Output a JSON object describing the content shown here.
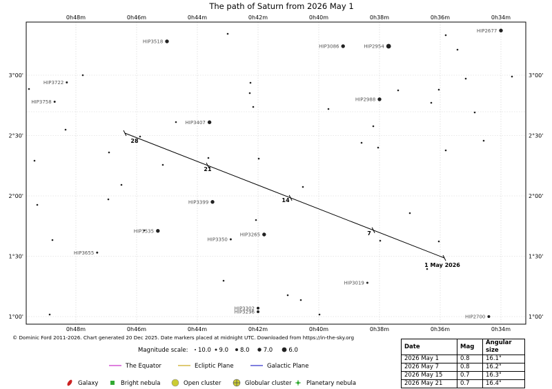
{
  "chart_data": {
    "type": "scatter",
    "title": "The path of Saturn from 2026 May 1",
    "x_axis_labels": [
      "0h48m",
      "0h46m",
      "0h44m",
      "0h42m",
      "0h40m",
      "0h38m",
      "0h36m",
      "0h34m"
    ],
    "y_axis_labels": [
      "1°00'",
      "1°30'",
      "2°00'",
      "2°30'",
      "3°00'"
    ],
    "grid": true,
    "stars": [
      {
        "name": "HIP2677",
        "ra_m": 34.0,
        "dec": 3.37,
        "mag": 7.0
      },
      {
        "name": "HIP3518",
        "ra_m": 45.0,
        "dec": 3.28,
        "mag": 7.0
      },
      {
        "name": "HIP3086",
        "ra_m": 39.2,
        "dec": 3.24,
        "mag": 7.0
      },
      {
        "name": "HIP2954",
        "ra_m": 37.7,
        "dec": 3.24,
        "mag": 6.0
      },
      {
        "name": "HIP3722",
        "ra_m": 48.3,
        "dec": 2.94,
        "mag": 9.0
      },
      {
        "name": "HIP3758",
        "ra_m": 48.7,
        "dec": 2.78,
        "mag": 9.0
      },
      {
        "name": "HIP2988",
        "ra_m": 38.0,
        "dec": 2.8,
        "mag": 7.0
      },
      {
        "name": "HIP3407",
        "ra_m": 43.6,
        "dec": 2.61,
        "mag": 7.0
      },
      {
        "name": "HIP3399",
        "ra_m": 43.5,
        "dec": 1.95,
        "mag": 7.0
      },
      {
        "name": "HIP3535",
        "ra_m": 45.3,
        "dec": 1.71,
        "mag": 7.0
      },
      {
        "name": "HIP3265",
        "ra_m": 41.8,
        "dec": 1.68,
        "mag": 7.0
      },
      {
        "name": "HIP3350",
        "ra_m": 42.9,
        "dec": 1.64,
        "mag": 9.0
      },
      {
        "name": "HIP3655",
        "ra_m": 47.3,
        "dec": 1.53,
        "mag": 9.0
      },
      {
        "name": "HIP3019",
        "ra_m": 38.4,
        "dec": 1.28,
        "mag": 9.0
      },
      {
        "name": "HIP3302",
        "ra_m": 42.0,
        "dec": 1.07,
        "mag": 8.0
      },
      {
        "name": "HIP3296",
        "ra_m": 42.0,
        "dec": 1.04,
        "mag": 8.0
      },
      {
        "name": "HIP2700",
        "ra_m": 34.4,
        "dec": 1.0,
        "mag": 8.0
      }
    ],
    "path": {
      "name": "Saturn",
      "markers": [
        {
          "label": "1 May 2026",
          "date": "2026 May 1"
        },
        {
          "label": "7",
          "date": "2026 May 7"
        },
        {
          "label": "14",
          "date": "2026 May 14"
        },
        {
          "label": "21",
          "date": "2026 May 21"
        },
        {
          "label": "28",
          "date": "2026 May 28"
        }
      ]
    }
  },
  "credit": "© Dominic Ford 2011-2026. Chart generated 20 Dec 2025. Date markers placed at midnight UTC. Downloaded from https://in-the-sky.org",
  "magnitude_scale": {
    "label": "Magnitude scale:",
    "entries": [
      "10.0",
      "9.0",
      "8.0",
      "7.0",
      "6.0"
    ]
  },
  "legend_lines": [
    {
      "label": "The Equator",
      "color": "#cc33cc"
    },
    {
      "label": "Ecliptic Plane",
      "color": "#ccaa22"
    },
    {
      "label": "Galactic Plane",
      "color": "#3333cc"
    }
  ],
  "legend_objects": [
    {
      "label": "Galaxy",
      "icon": "galaxy-icon",
      "color": "#cc2222"
    },
    {
      "label": "Bright nebula",
      "icon": "bright-nebula-icon",
      "color": "#33aa33"
    },
    {
      "label": "Open cluster",
      "icon": "open-cluster-icon",
      "color": "#cccc33"
    },
    {
      "label": "Globular cluster",
      "icon": "globular-cluster-icon",
      "color": "#cccc33"
    },
    {
      "label": "Planetary nebula",
      "icon": "planetary-nebula-icon",
      "color": "#33aa33"
    }
  ],
  "table": {
    "headers": [
      "Date",
      "Mag",
      "Angular size"
    ],
    "rows": [
      [
        "2026 May 1",
        "0.8",
        "16.1\""
      ],
      [
        "2026 May 7",
        "0.8",
        "16.2\""
      ],
      [
        "2026 May 15",
        "0.7",
        "16.3\""
      ],
      [
        "2026 May 21",
        "0.7",
        "16.4\""
      ]
    ]
  }
}
